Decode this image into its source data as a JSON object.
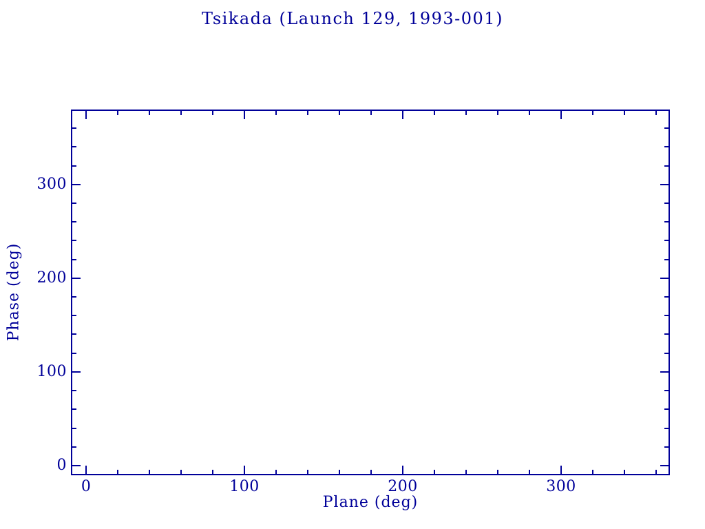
{
  "colors": {
    "ink": "#000099",
    "background": "#ffffff"
  },
  "chart_data": {
    "type": "scatter",
    "title": "Tsikada (Launch 129, 1993-001)",
    "xlabel": "Plane (deg)",
    "ylabel": "Phase (deg)",
    "xlim": [
      -9.6,
      368.7
    ],
    "ylim": [
      -10.3,
      379.9
    ],
    "x_major_ticks": [
      0,
      100,
      200,
      300
    ],
    "x_tick_labels": [
      "0",
      "100",
      "200",
      "300"
    ],
    "x_minor_step": 20,
    "y_major_ticks": [
      0,
      100,
      200,
      300
    ],
    "y_tick_labels": [
      "0",
      "100",
      "200",
      "300"
    ],
    "y_minor_step": 20,
    "grid": false,
    "legend": false,
    "series": []
  }
}
